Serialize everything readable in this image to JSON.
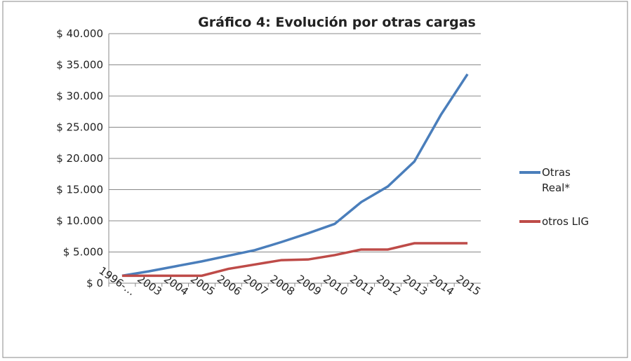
{
  "chart_data": {
    "type": "line",
    "title": "Gráfico 4: Evolución por otras cargas",
    "categories": [
      "1996-…",
      "2003",
      "2004",
      "2005",
      "2006",
      "2007",
      "2008",
      "2009",
      "2010",
      "2011",
      "2012",
      "2013",
      "2014",
      "2015"
    ],
    "series": [
      {
        "name": "Otras Real*",
        "color": "#4a7ebb",
        "values": [
          1200,
          1900,
          2700,
          3500,
          4400,
          5300,
          6600,
          8000,
          9500,
          13000,
          15500,
          19500,
          27000,
          33500
        ]
      },
      {
        "name": "otros LIG",
        "color": "#be4b48",
        "values": [
          1200,
          1200,
          1200,
          1200,
          2300,
          3000,
          3700,
          3800,
          4500,
          5400,
          5400,
          6400,
          6400,
          6400
        ]
      }
    ],
    "ylim": [
      0,
      40000
    ],
    "yticks": [
      {
        "value": 0,
        "label": "$ 0"
      },
      {
        "value": 5000,
        "label": "$ 5.000"
      },
      {
        "value": 10000,
        "label": "$ 10.000"
      },
      {
        "value": 15000,
        "label": "$ 15.000"
      },
      {
        "value": 20000,
        "label": "$ 20.000"
      },
      {
        "value": 25000,
        "label": "$ 25.000"
      },
      {
        "value": 30000,
        "label": "$ 30.000"
      },
      {
        "value": 35000,
        "label": "$ 35.000"
      },
      {
        "value": 40000,
        "label": "$ 40.000"
      }
    ],
    "grid": true
  }
}
